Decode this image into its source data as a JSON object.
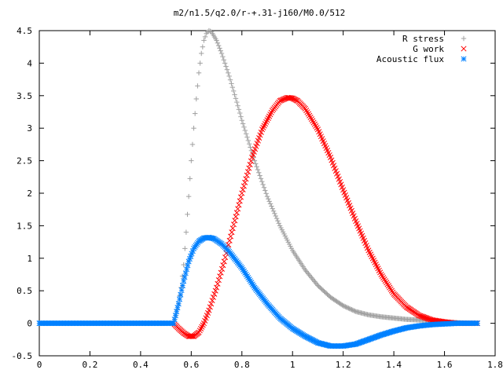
{
  "chart_data": {
    "type": "scatter",
    "title": "m2/n1.5/q2.0/r-+.31-j160/M0.0/512",
    "xlabel": "",
    "ylabel": "",
    "xlim": [
      0,
      1.8
    ],
    "ylim": [
      -0.5,
      4.5
    ],
    "x_ticks": [
      "0",
      "0.2",
      "0.4",
      "0.6",
      "0.8",
      "1",
      "1.2",
      "1.4",
      "1.6",
      "1.8"
    ],
    "y_ticks": [
      "-0.5",
      "0",
      "0.5",
      "1",
      "1.5",
      "2",
      "2.5",
      "3",
      "3.5",
      "4",
      "4.5"
    ],
    "grid": false,
    "legend_position": "top-right",
    "series": [
      {
        "name": "R stress",
        "marker": "plus",
        "color": "#a0a0a0",
        "points": [
          [
            0.53,
            0.0
          ],
          [
            0.54,
            0.12
          ],
          [
            0.55,
            0.3
          ],
          [
            0.56,
            0.55
          ],
          [
            0.57,
            0.9
          ],
          [
            0.58,
            1.4
          ],
          [
            0.59,
            1.95
          ],
          [
            0.6,
            2.5
          ],
          [
            0.61,
            3.0
          ],
          [
            0.62,
            3.45
          ],
          [
            0.63,
            3.85
          ],
          [
            0.64,
            4.15
          ],
          [
            0.65,
            4.35
          ],
          [
            0.66,
            4.46
          ],
          [
            0.67,
            4.5
          ],
          [
            0.68,
            4.48
          ],
          [
            0.7,
            4.35
          ],
          [
            0.72,
            4.15
          ],
          [
            0.75,
            3.8
          ],
          [
            0.78,
            3.4
          ],
          [
            0.8,
            3.12
          ],
          [
            0.85,
            2.5
          ],
          [
            0.9,
            1.95
          ],
          [
            0.95,
            1.5
          ],
          [
            1.0,
            1.12
          ],
          [
            1.05,
            0.82
          ],
          [
            1.1,
            0.58
          ],
          [
            1.15,
            0.4
          ],
          [
            1.2,
            0.27
          ],
          [
            1.25,
            0.18
          ],
          [
            1.3,
            0.13
          ],
          [
            1.35,
            0.1
          ],
          [
            1.4,
            0.08
          ],
          [
            1.45,
            0.06
          ],
          [
            1.5,
            0.05
          ],
          [
            1.55,
            0.04
          ],
          [
            1.6,
            0.02
          ],
          [
            1.65,
            0.01
          ],
          [
            1.7,
            0.0
          ],
          [
            1.73,
            0.0
          ]
        ]
      },
      {
        "name": "G work",
        "marker": "cross",
        "color": "#ff0000",
        "points": [
          [
            0.53,
            0.0
          ],
          [
            0.55,
            -0.08
          ],
          [
            0.57,
            -0.15
          ],
          [
            0.59,
            -0.2
          ],
          [
            0.61,
            -0.2
          ],
          [
            0.63,
            -0.14
          ],
          [
            0.65,
            0.0
          ],
          [
            0.67,
            0.2
          ],
          [
            0.7,
            0.55
          ],
          [
            0.73,
            0.95
          ],
          [
            0.76,
            1.4
          ],
          [
            0.8,
            2.0
          ],
          [
            0.84,
            2.55
          ],
          [
            0.88,
            2.98
          ],
          [
            0.92,
            3.27
          ],
          [
            0.95,
            3.42
          ],
          [
            0.98,
            3.47
          ],
          [
            1.0,
            3.46
          ],
          [
            1.02,
            3.42
          ],
          [
            1.05,
            3.3
          ],
          [
            1.1,
            2.98
          ],
          [
            1.15,
            2.55
          ],
          [
            1.2,
            2.05
          ],
          [
            1.25,
            1.57
          ],
          [
            1.3,
            1.12
          ],
          [
            1.35,
            0.75
          ],
          [
            1.4,
            0.45
          ],
          [
            1.45,
            0.25
          ],
          [
            1.5,
            0.12
          ],
          [
            1.55,
            0.05
          ],
          [
            1.6,
            0.02
          ],
          [
            1.65,
            0.0
          ],
          [
            1.7,
            0.0
          ],
          [
            1.73,
            0.0
          ]
        ]
      },
      {
        "name": "Acoustic flux",
        "marker": "star",
        "color": "#0080ff",
        "points": [
          [
            0.0,
            0.0
          ],
          [
            0.05,
            0.0
          ],
          [
            0.1,
            0.0
          ],
          [
            0.15,
            0.0
          ],
          [
            0.2,
            0.0
          ],
          [
            0.25,
            0.0
          ],
          [
            0.3,
            0.0
          ],
          [
            0.35,
            0.0
          ],
          [
            0.4,
            0.0
          ],
          [
            0.45,
            0.0
          ],
          [
            0.5,
            0.0
          ],
          [
            0.53,
            0.0
          ],
          [
            0.55,
            0.3
          ],
          [
            0.57,
            0.65
          ],
          [
            0.59,
            0.95
          ],
          [
            0.61,
            1.15
          ],
          [
            0.63,
            1.26
          ],
          [
            0.65,
            1.31
          ],
          [
            0.67,
            1.32
          ],
          [
            0.69,
            1.3
          ],
          [
            0.72,
            1.22
          ],
          [
            0.75,
            1.1
          ],
          [
            0.8,
            0.85
          ],
          [
            0.85,
            0.55
          ],
          [
            0.9,
            0.3
          ],
          [
            0.95,
            0.08
          ],
          [
            1.0,
            -0.08
          ],
          [
            1.05,
            -0.2
          ],
          [
            1.1,
            -0.3
          ],
          [
            1.15,
            -0.35
          ],
          [
            1.2,
            -0.35
          ],
          [
            1.25,
            -0.32
          ],
          [
            1.3,
            -0.25
          ],
          [
            1.35,
            -0.18
          ],
          [
            1.4,
            -0.12
          ],
          [
            1.45,
            -0.07
          ],
          [
            1.5,
            -0.04
          ],
          [
            1.55,
            -0.02
          ],
          [
            1.6,
            -0.01
          ],
          [
            1.65,
            0.0
          ],
          [
            1.7,
            0.0
          ],
          [
            1.73,
            0.0
          ]
        ]
      }
    ]
  }
}
